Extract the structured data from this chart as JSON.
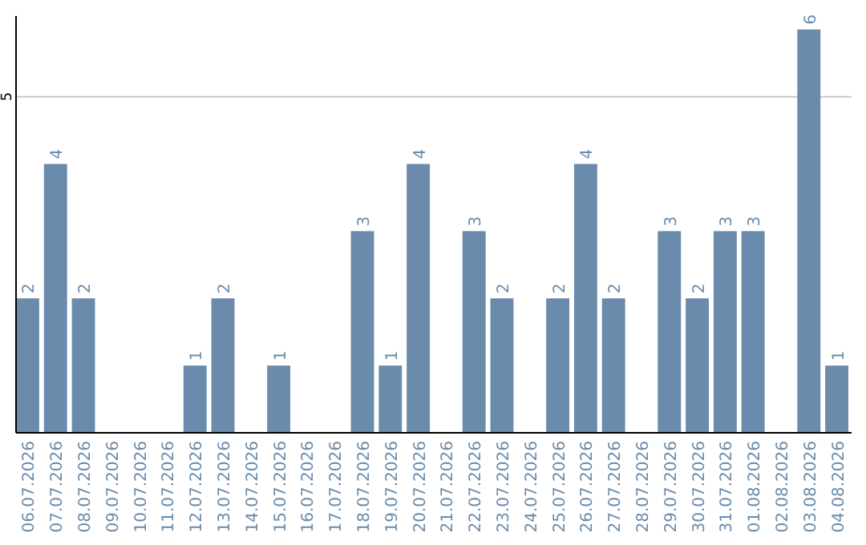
{
  "chart_data": {
    "type": "bar",
    "categories": [
      "06.07.2026",
      "07.07.2026",
      "08.07.2026",
      "09.07.2026",
      "10.07.2026",
      "11.07.2026",
      "12.07.2026",
      "13.07.2026",
      "14.07.2026",
      "15.07.2026",
      "16.07.2026",
      "17.07.2026",
      "18.07.2026",
      "19.07.2026",
      "20.07.2026",
      "21.07.2026",
      "22.07.2026",
      "23.07.2026",
      "24.07.2026",
      "25.07.2026",
      "26.07.2026",
      "27.07.2026",
      "28.07.2026",
      "29.07.2026",
      "30.07.2026",
      "31.07.2026",
      "01.08.2026",
      "02.08.2026",
      "03.08.2026",
      "04.08.2026"
    ],
    "values": [
      2,
      4,
      2,
      0,
      0,
      0,
      1,
      2,
      0,
      1,
      0,
      0,
      3,
      1,
      4,
      0,
      3,
      2,
      0,
      2,
      4,
      2,
      0,
      3,
      2,
      3,
      3,
      0,
      6,
      1
    ],
    "value_labels": [
      "2",
      "4",
      "2",
      null,
      null,
      null,
      "1",
      "2",
      null,
      "1",
      null,
      null,
      "3",
      "1",
      "4",
      null,
      "3",
      "2",
      null,
      "2",
      "4",
      "2",
      null,
      "3",
      "2",
      "3",
      "3",
      null,
      "6",
      "1"
    ],
    "color": "#6a8bab",
    "ylim": [
      0,
      6.2
    ],
    "yticks": [
      5
    ],
    "grid": "y"
  }
}
